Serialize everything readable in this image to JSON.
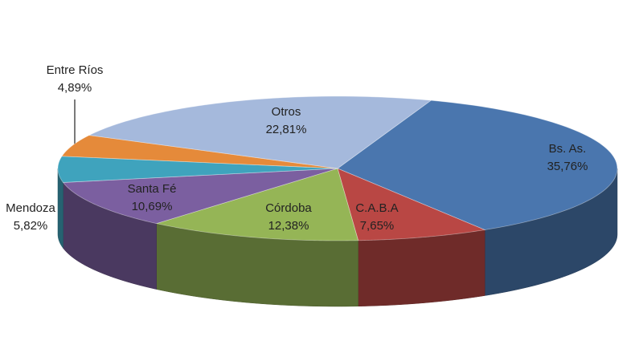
{
  "chart_data": {
    "type": "pie3d",
    "categories": [
      "Bs. As.",
      "C.A.B.A",
      "Córdoba",
      "Santa Fé",
      "Mendoza",
      "Entre Ríos",
      "Otros"
    ],
    "values": [
      35.76,
      7.65,
      12.38,
      10.69,
      5.82,
      4.89,
      22.81
    ],
    "value_labels": [
      "35,76%",
      "7,65%",
      "12,38%",
      "10,69%",
      "5,82%",
      "4,89%",
      "22,81%"
    ],
    "colors": [
      "#4a76ae",
      "#b94744",
      "#95b556",
      "#7b5fa0",
      "#3fa3bd",
      "#e58a3a",
      "#a5b9dc"
    ]
  }
}
